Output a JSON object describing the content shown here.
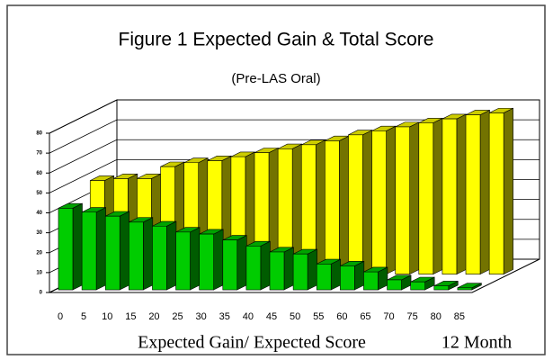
{
  "chart_data": {
    "type": "bar3d",
    "title": "Figure 1  Expected Gain & Total Score",
    "subtitle": "(Pre-LAS Oral)",
    "x_label": "Expected Gain/ Expected Score",
    "annotation": "12 Month",
    "categories": [
      "0",
      "5",
      "10",
      "15",
      "20",
      "25",
      "30",
      "35",
      "40",
      "45",
      "50",
      "55",
      "60",
      "65",
      "70",
      "75",
      "80",
      "85"
    ],
    "series": [
      {
        "color": "#00cc00",
        "values": [
          41,
          39,
          37,
          34,
          32,
          29,
          28,
          25,
          22,
          19,
          18,
          13,
          12,
          9,
          5,
          4,
          2,
          1
        ]
      },
      {
        "color": "#ffff00",
        "values": [
          47,
          48,
          48,
          54,
          56,
          57,
          59,
          61,
          63,
          65,
          67,
          70,
          72,
          74,
          76,
          78,
          80,
          81
        ]
      }
    ],
    "ylim": [
      0,
      80
    ],
    "yticks": [
      0,
      10,
      20,
      30,
      40,
      50,
      60,
      70,
      80
    ],
    "grid": true
  }
}
